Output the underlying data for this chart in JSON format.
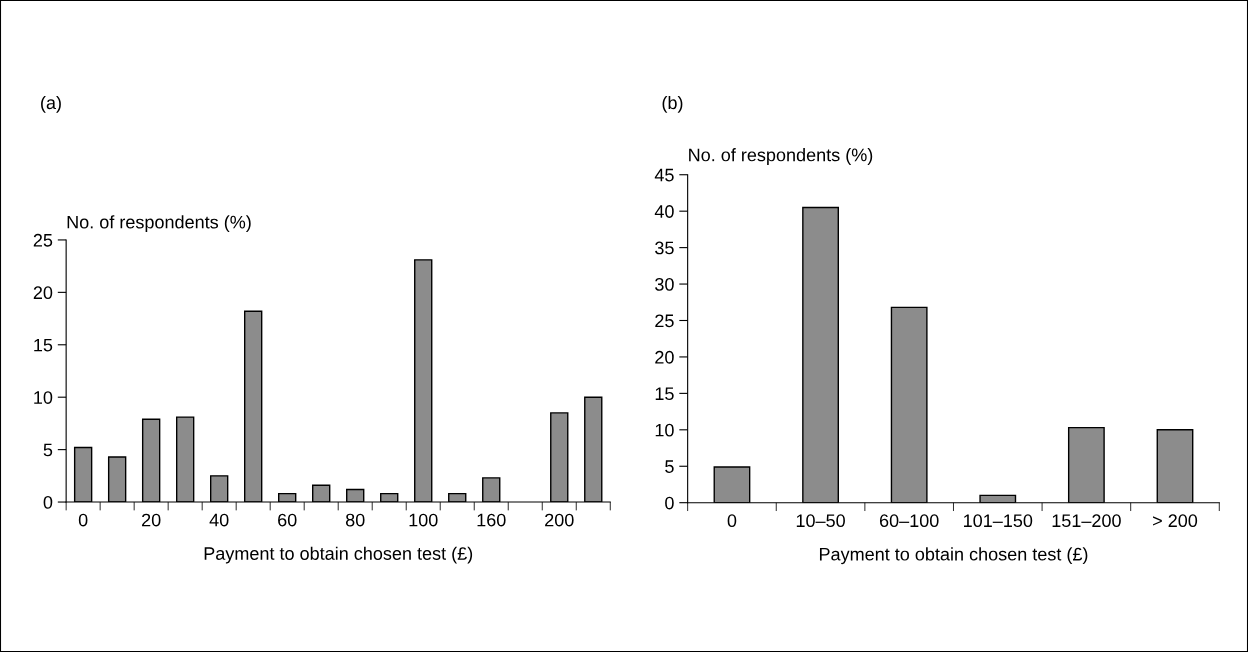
{
  "chart_data": [
    {
      "type": "bar",
      "title": "(a)",
      "ylabel": "No. of respondents (%)",
      "xlabel": "Payment to obtain chosen test (£)",
      "categories": [
        "0",
        null,
        "20",
        null,
        "40",
        null,
        "60",
        null,
        "80",
        null,
        "100",
        null,
        "160",
        null,
        "200",
        null
      ],
      "values": [
        5.2,
        4.3,
        7.9,
        8.1,
        2.5,
        18.2,
        0.8,
        1.6,
        1.2,
        0.8,
        23.1,
        0.8,
        2.3,
        null,
        8.5,
        10.0
      ],
      "color": "#8c8c8c",
      "ylim": [
        0,
        25
      ],
      "yticks": [
        0,
        5,
        10,
        15,
        20,
        25
      ],
      "grid": false,
      "legend": false
    },
    {
      "type": "bar",
      "title": "(b)",
      "ylabel": "No. of respondents (%)",
      "xlabel": "Payment to obtain chosen test (£)",
      "categories": [
        "0",
        "10–50",
        "60–100",
        "101–150",
        "151–200",
        "> 200"
      ],
      "values": [
        4.9,
        40.5,
        26.8,
        1.0,
        10.3,
        10.0
      ],
      "color": "#8c8c8c",
      "ylim": [
        0,
        45
      ],
      "yticks": [
        0,
        5,
        10,
        15,
        20,
        25,
        30,
        35,
        40,
        45
      ],
      "grid": false,
      "legend": false
    }
  ]
}
